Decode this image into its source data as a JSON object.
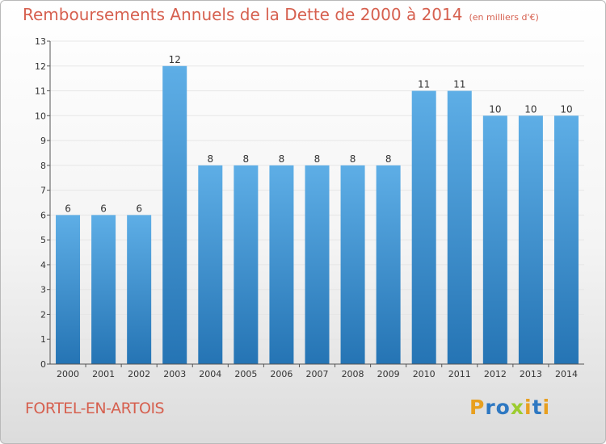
{
  "header": {
    "title": "Remboursements Annuels de la Dette de 2000 à 2014",
    "unit": "(en milliers d'€)"
  },
  "footer": {
    "town": "FORTEL-EN-ARTOIS",
    "brand": "Proxiti"
  },
  "colors": {
    "accent": "#d6604f",
    "bar_light": "#5eaee6",
    "bar_dark": "#2574b4"
  },
  "chart_data": {
    "type": "bar",
    "categories": [
      "2000",
      "2001",
      "2002",
      "2003",
      "2004",
      "2005",
      "2006",
      "2007",
      "2008",
      "2009",
      "2010",
      "2011",
      "2012",
      "2013",
      "2014"
    ],
    "values": [
      6,
      6,
      6,
      12,
      8,
      8,
      8,
      8,
      8,
      8,
      11,
      11,
      10,
      10,
      10
    ],
    "data_labels": [
      "6",
      "6",
      "6",
      "12",
      "8",
      "8",
      "8",
      "8",
      "8",
      "8",
      "11",
      "11",
      "10",
      "10",
      "10"
    ],
    "ylim": [
      0,
      13
    ],
    "yticks": [
      "0",
      "1",
      "2",
      "3",
      "4",
      "5",
      "6",
      "7",
      "8",
      "9",
      "10",
      "11",
      "12",
      "13"
    ],
    "grid": true,
    "title": "Remboursements Annuels de la Dette de 2000 à 2014",
    "xlabel": "",
    "ylabel": ""
  }
}
